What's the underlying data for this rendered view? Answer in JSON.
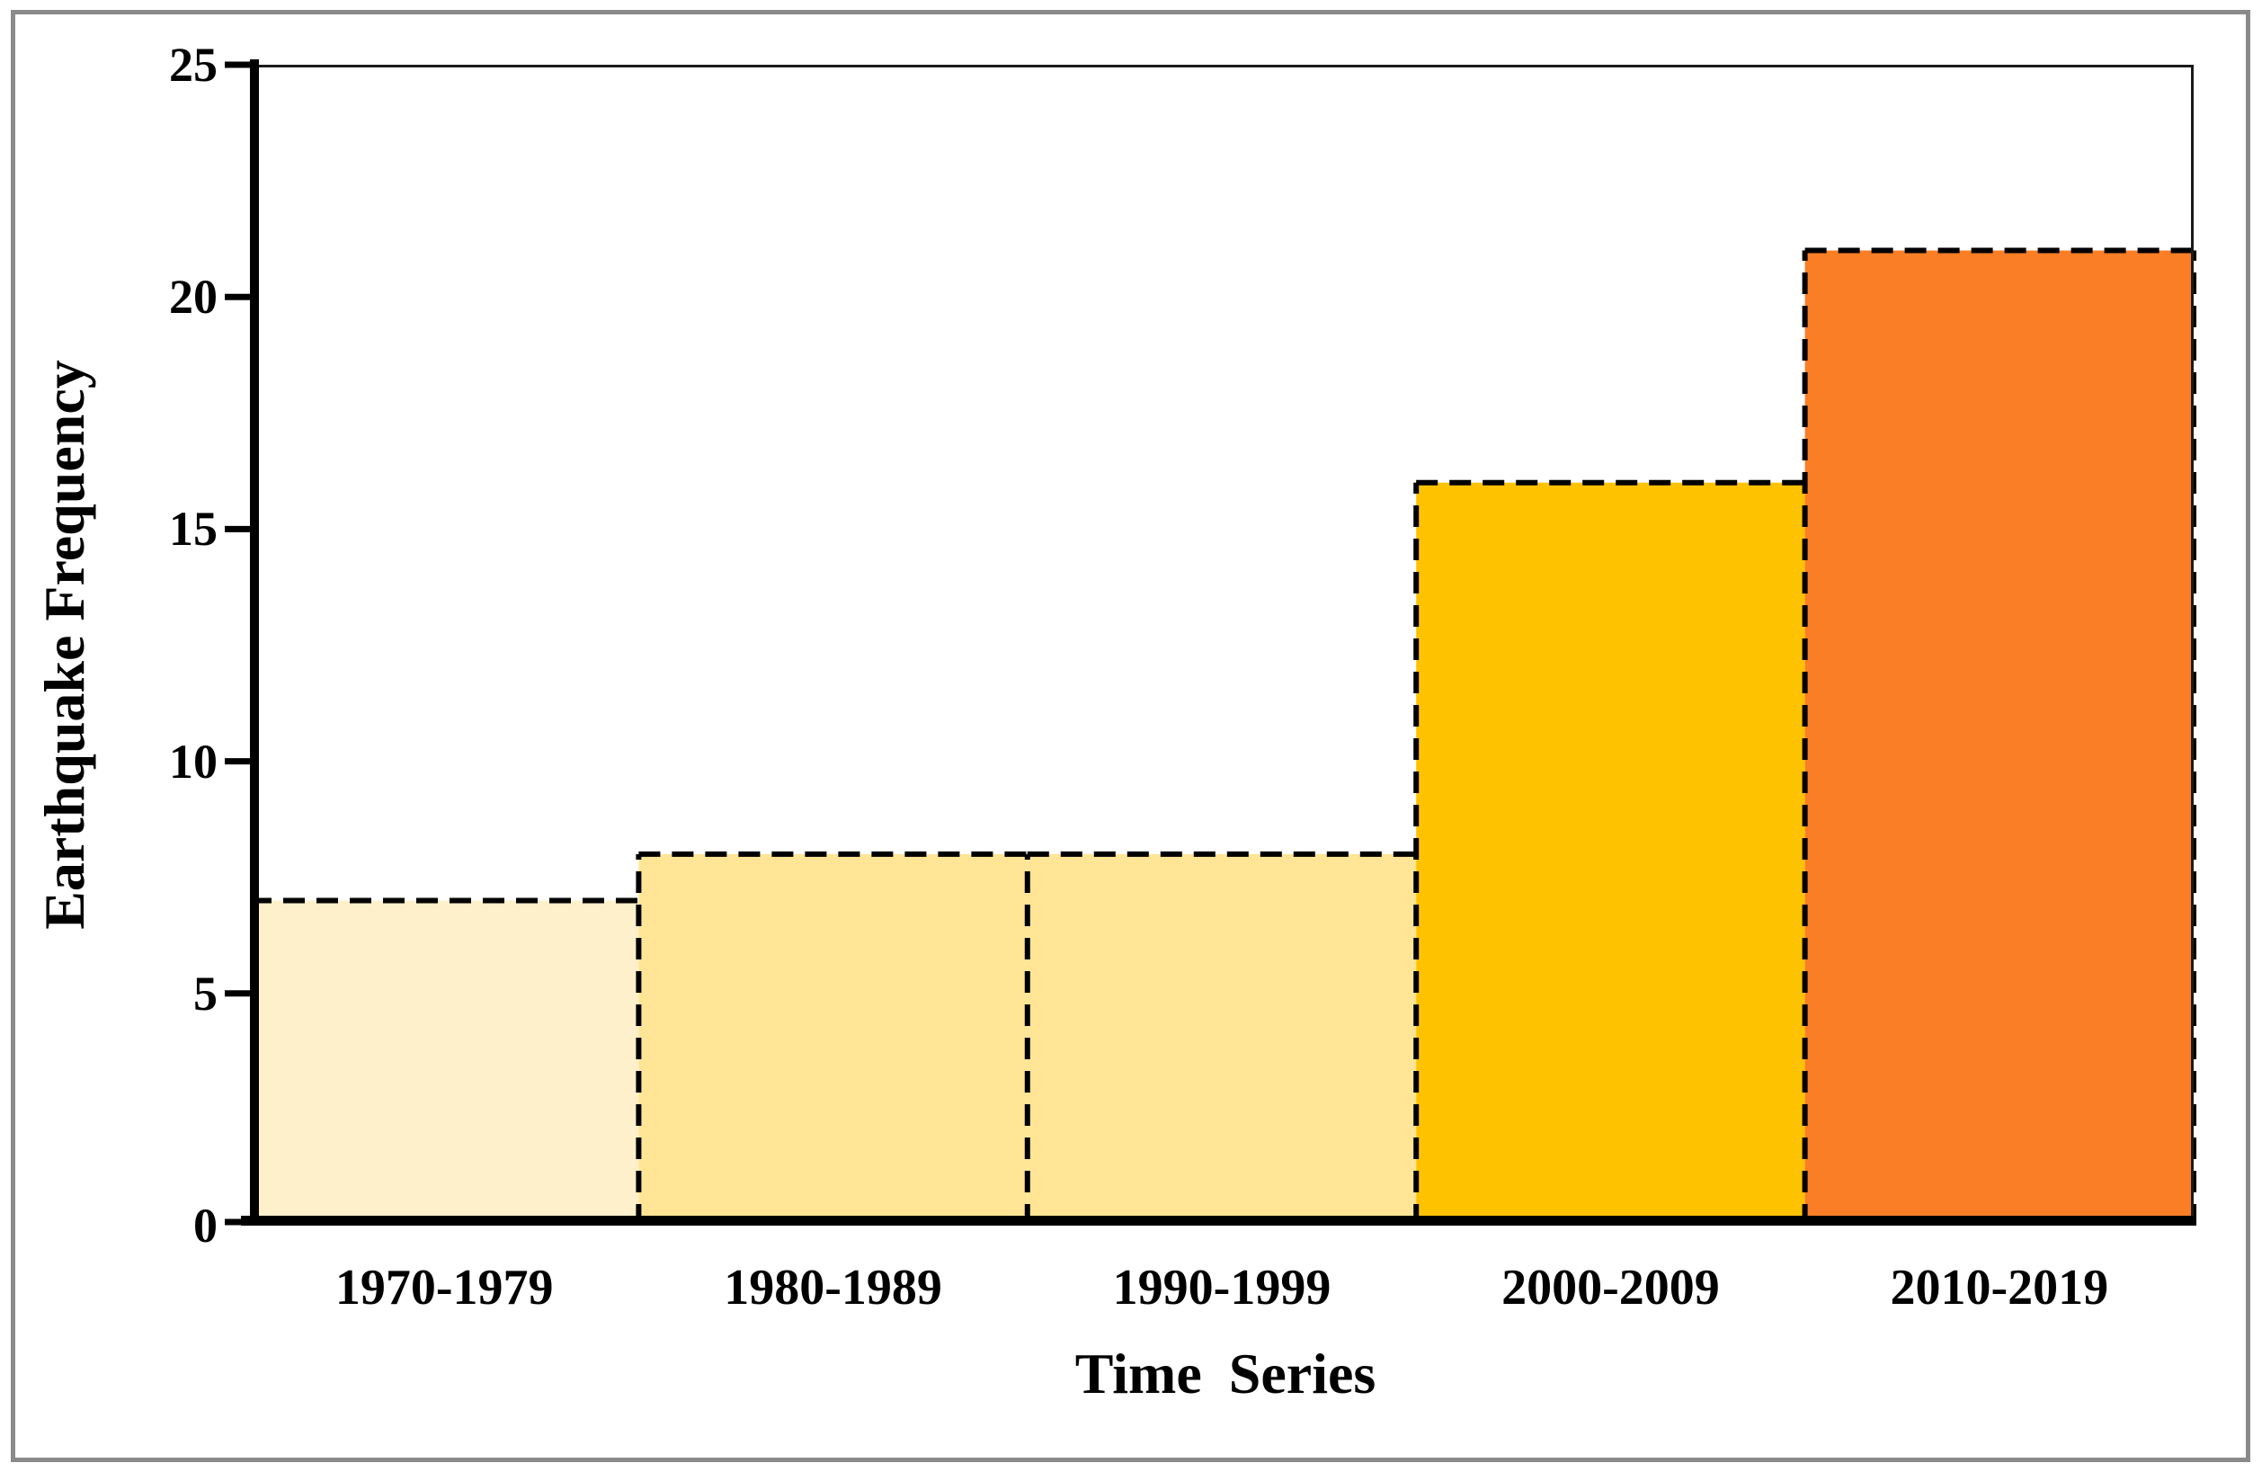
{
  "figure": {
    "outer_border_color": "#8a8a8a",
    "background_color": "#ffffff"
  },
  "chart_data": {
    "type": "bar",
    "title": "",
    "categories": [
      "1970-1979",
      "1980-1989",
      "1990-1999",
      "2000-2009",
      "2010-2019"
    ],
    "values": [
      7,
      8,
      8,
      16,
      21
    ],
    "bar_colors": [
      "#FEF0CA",
      "#FFE595",
      "#FFE595",
      "#FFC200",
      "#FA7E26"
    ],
    "xlabel": "Time Series",
    "ylabel": "Earthquake Frequency",
    "ylim": [
      0,
      25
    ],
    "yticks": [
      0,
      5,
      10,
      15,
      20,
      25
    ],
    "bar_gap": 0,
    "bar_outline_style": "dashed",
    "bar_outline_color": "#000000",
    "axis_color": "#000000",
    "frame_color": "#1a1a1a",
    "grid": false,
    "legend": false
  }
}
